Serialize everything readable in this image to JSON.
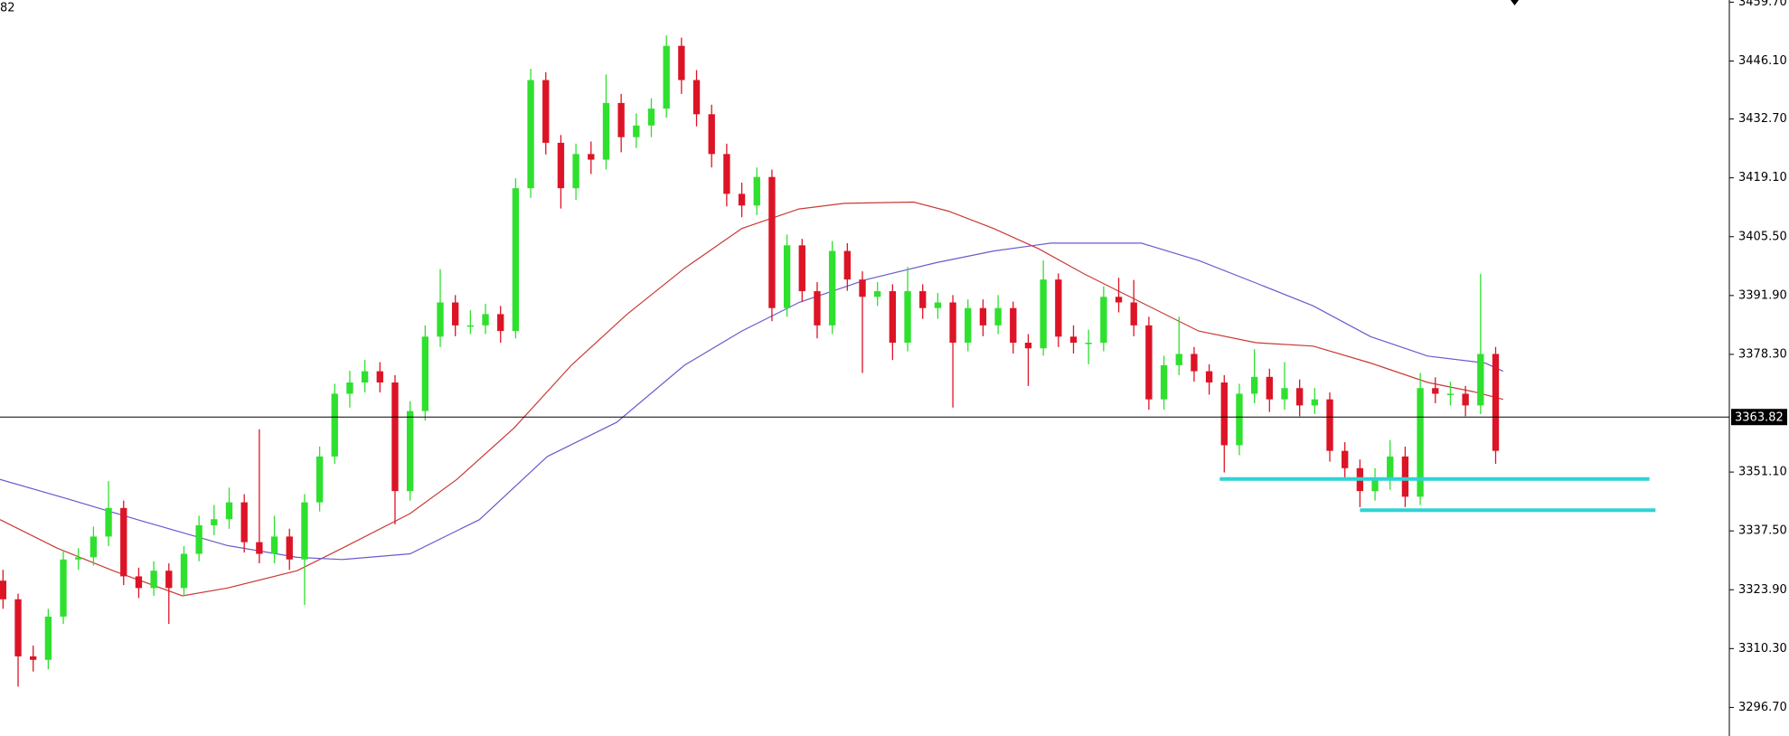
{
  "chart_data": {
    "type": "candlestick",
    "corner_label": "82",
    "up_color": "#2fe02f",
    "down_color": "#dc1426",
    "xlim": [
      -0.2,
      114.5
    ],
    "ylim": [
      3290.1,
      3460.2
    ],
    "yticks": [
      {
        "value": 3459.7,
        "label": "3459.70"
      },
      {
        "value": 3446.1,
        "label": "3446.10"
      },
      {
        "value": 3432.7,
        "label": "3432.70"
      },
      {
        "value": 3419.1,
        "label": "3419.10"
      },
      {
        "value": 3405.5,
        "label": "3405.50"
      },
      {
        "value": 3391.9,
        "label": "3391.90"
      },
      {
        "value": 3378.3,
        "label": "3378.30"
      },
      {
        "value": 3351.1,
        "label": "3351.10"
      },
      {
        "value": 3337.5,
        "label": "3337.50"
      },
      {
        "value": 3323.9,
        "label": "3323.90"
      },
      {
        "value": 3310.3,
        "label": "3310.30"
      },
      {
        "value": 3296.7,
        "label": "3296.70"
      }
    ],
    "current_price": 3363.82,
    "candles": [
      [
        3326.0,
        3328.5,
        3319.5,
        3321.7
      ],
      [
        3321.7,
        3323.0,
        3301.5,
        3308.5
      ],
      [
        3308.5,
        3311.0,
        3305.0,
        3307.7
      ],
      [
        3307.7,
        3319.5,
        3305.5,
        3317.7
      ],
      [
        3317.7,
        3333.0,
        3316.0,
        3330.9
      ],
      [
        3330.9,
        3333.5,
        3328.5,
        3331.4
      ],
      [
        3331.4,
        3338.5,
        3329.5,
        3336.2
      ],
      [
        3336.2,
        3349.0,
        3334.0,
        3342.8
      ],
      [
        3342.8,
        3344.5,
        3325.0,
        3327.0
      ],
      [
        3327.0,
        3329.0,
        3322.0,
        3324.3
      ],
      [
        3324.3,
        3330.5,
        3322.5,
        3328.3
      ],
      [
        3328.3,
        3330.0,
        3316.0,
        3324.3
      ],
      [
        3324.3,
        3334.0,
        3322.5,
        3332.2
      ],
      [
        3332.2,
        3341.0,
        3330.5,
        3338.8
      ],
      [
        3338.8,
        3343.5,
        3336.5,
        3340.2
      ],
      [
        3340.2,
        3347.5,
        3338.0,
        3344.1
      ],
      [
        3344.1,
        3346.0,
        3332.5,
        3334.9
      ],
      [
        3334.9,
        3361.0,
        3330.0,
        3332.2
      ],
      [
        3332.2,
        3341.0,
        3330.0,
        3336.2
      ],
      [
        3336.2,
        3338.0,
        3328.5,
        3330.9
      ],
      [
        3330.9,
        3346.0,
        3320.4,
        3344.1
      ],
      [
        3344.1,
        3357.0,
        3342.0,
        3354.7
      ],
      [
        3354.7,
        3371.5,
        3353.0,
        3369.2
      ],
      [
        3369.2,
        3374.5,
        3366.0,
        3371.8
      ],
      [
        3371.8,
        3377.0,
        3369.5,
        3374.4
      ],
      [
        3374.4,
        3376.5,
        3369.5,
        3371.8
      ],
      [
        3371.8,
        3373.5,
        3339.0,
        3346.7
      ],
      [
        3346.7,
        3367.5,
        3344.5,
        3365.2
      ],
      [
        3365.2,
        3385.0,
        3363.0,
        3382.4
      ],
      [
        3382.4,
        3398.0,
        3380.0,
        3390.3
      ],
      [
        3390.3,
        3392.0,
        3382.5,
        3385.0
      ],
      [
        3385.0,
        3388.5,
        3383.0,
        3385.0
      ],
      [
        3385.0,
        3390.0,
        3383.0,
        3387.6
      ],
      [
        3387.6,
        3389.5,
        3381.0,
        3383.7
      ],
      [
        3383.7,
        3419.0,
        3382.0,
        3416.7
      ],
      [
        3416.7,
        3444.3,
        3414.5,
        3441.7
      ],
      [
        3441.7,
        3443.5,
        3424.5,
        3427.2
      ],
      [
        3427.2,
        3429.0,
        3412.0,
        3416.7
      ],
      [
        3416.7,
        3427.0,
        3414.0,
        3424.6
      ],
      [
        3424.6,
        3427.5,
        3420.0,
        3423.3
      ],
      [
        3423.3,
        3443.0,
        3421.0,
        3436.4
      ],
      [
        3436.4,
        3438.5,
        3425.0,
        3428.5
      ],
      [
        3428.5,
        3434.0,
        3426.0,
        3431.2
      ],
      [
        3431.2,
        3437.5,
        3428.5,
        3435.1
      ],
      [
        3435.1,
        3452.0,
        3433.0,
        3449.6
      ],
      [
        3449.6,
        3451.5,
        3438.5,
        3441.7
      ],
      [
        3441.7,
        3444.0,
        3431.0,
        3433.8
      ],
      [
        3433.8,
        3436.0,
        3421.5,
        3424.6
      ],
      [
        3424.6,
        3427.0,
        3412.5,
        3415.4
      ],
      [
        3415.4,
        3418.0,
        3410.0,
        3412.7
      ],
      [
        3412.7,
        3421.5,
        3410.5,
        3419.3
      ],
      [
        3419.3,
        3421.0,
        3386.0,
        3389.0
      ],
      [
        3389.0,
        3406.0,
        3387.0,
        3403.5
      ],
      [
        3403.5,
        3405.0,
        3390.5,
        3392.9
      ],
      [
        3392.9,
        3395.0,
        3382.0,
        3385.0
      ],
      [
        3385.0,
        3404.5,
        3383.0,
        3402.2
      ],
      [
        3402.2,
        3404.0,
        3393.0,
        3395.6
      ],
      [
        3395.6,
        3397.5,
        3374.0,
        3391.6
      ],
      [
        3391.6,
        3395.0,
        3389.5,
        3392.9
      ],
      [
        3392.9,
        3394.5,
        3377.0,
        3381.0
      ],
      [
        3381.0,
        3398.5,
        3379.0,
        3392.9
      ],
      [
        3392.9,
        3394.5,
        3386.5,
        3389.0
      ],
      [
        3389.0,
        3392.5,
        3386.5,
        3390.3
      ],
      [
        3390.3,
        3392.0,
        3366.0,
        3381.0
      ],
      [
        3381.0,
        3391.0,
        3379.0,
        3389.0
      ],
      [
        3389.0,
        3391.0,
        3382.5,
        3385.0
      ],
      [
        3385.0,
        3392.0,
        3383.0,
        3389.0
      ],
      [
        3389.0,
        3390.5,
        3378.5,
        3381.0
      ],
      [
        3381.0,
        3383.0,
        3371.0,
        3379.7
      ],
      [
        3379.7,
        3400.0,
        3378.0,
        3395.6
      ],
      [
        3395.6,
        3397.0,
        3380.0,
        3382.4
      ],
      [
        3382.4,
        3385.0,
        3378.5,
        3381.0
      ],
      [
        3381.0,
        3384.0,
        3376.0,
        3381.0
      ],
      [
        3381.0,
        3394.0,
        3379.0,
        3391.6
      ],
      [
        3391.6,
        3396.0,
        3388.0,
        3390.3
      ],
      [
        3390.3,
        3395.5,
        3382.5,
        3385.0
      ],
      [
        3385.0,
        3387.0,
        3365.5,
        3367.9
      ],
      [
        3367.9,
        3378.0,
        3365.5,
        3375.8
      ],
      [
        3375.8,
        3387.0,
        3373.5,
        3378.4
      ],
      [
        3378.4,
        3380.0,
        3372.0,
        3374.4
      ],
      [
        3374.4,
        3376.0,
        3369.0,
        3371.8
      ],
      [
        3371.8,
        3373.5,
        3351.0,
        3357.3
      ],
      [
        3357.3,
        3371.5,
        3355.0,
        3369.2
      ],
      [
        3369.2,
        3379.5,
        3367.0,
        3373.1
      ],
      [
        3373.1,
        3375.0,
        3365.0,
        3367.9
      ],
      [
        3367.9,
        3376.5,
        3365.5,
        3370.5
      ],
      [
        3370.5,
        3372.5,
        3364.0,
        3366.5
      ],
      [
        3366.5,
        3370.5,
        3364.5,
        3367.9
      ],
      [
        3367.9,
        3369.5,
        3353.5,
        3356.0
      ],
      [
        3356.0,
        3358.0,
        3349.5,
        3352.0
      ],
      [
        3352.0,
        3354.0,
        3343.0,
        3346.7
      ],
      [
        3346.7,
        3352.0,
        3344.5,
        3349.4
      ],
      [
        3349.4,
        3358.5,
        3347.0,
        3354.7
      ],
      [
        3354.7,
        3357.0,
        3343.0,
        3345.4
      ],
      [
        3345.4,
        3374.0,
        3343.5,
        3370.5
      ],
      [
        3370.5,
        3373.0,
        3367.0,
        3369.2
      ],
      [
        3369.2,
        3372.0,
        3366.5,
        3369.2
      ],
      [
        3369.2,
        3371.0,
        3364.0,
        3366.5
      ],
      [
        3366.5,
        3396.9,
        3364.5,
        3378.4
      ],
      [
        3378.4,
        3380.0,
        3353.0,
        3356.0
      ]
    ],
    "moving_averages": [
      {
        "color": "#c83a34",
        "x": [
          -0.2,
          3.6,
          7.3,
          11.9,
          14.9,
          19.5,
          22.5,
          27.0,
          30.1,
          33.9,
          37.7,
          41.4,
          45.2,
          49.0,
          52.8,
          55.8,
          60.4,
          62.7,
          65.7,
          68.7,
          71.7,
          75.5,
          79.3,
          83.1,
          86.9,
          90.7,
          94.5,
          97.5,
          99.5
        ],
        "values": [
          3340.1,
          3333.5,
          3328.3,
          3322.5,
          3324.3,
          3328.3,
          3333.5,
          3341.5,
          3349.4,
          3361.3,
          3375.8,
          3387.6,
          3398.2,
          3407.4,
          3411.9,
          3413.2,
          3413.5,
          3411.4,
          3407.4,
          3402.7,
          3396.9,
          3390.3,
          3383.7,
          3381.0,
          3380.2,
          3376.3,
          3371.8,
          3369.7,
          3367.9
        ]
      },
      {
        "color": "#6a5acd",
        "x": [
          -0.2,
          4.3,
          8.9,
          14.9,
          19.5,
          22.5,
          27.0,
          31.6,
          36.1,
          40.7,
          45.2,
          49.0,
          52.8,
          57.3,
          61.9,
          65.7,
          69.5,
          75.5,
          79.3,
          83.1,
          86.9,
          90.7,
          94.5,
          98.3,
          99.5
        ],
        "values": [
          3349.4,
          3344.9,
          3340.1,
          3334.1,
          3331.4,
          3330.9,
          3332.2,
          3340.1,
          3354.7,
          3362.6,
          3375.8,
          3383.7,
          3390.3,
          3395.6,
          3399.5,
          3402.2,
          3404.0,
          3404.0,
          3400.0,
          3394.8,
          3389.5,
          3382.4,
          3377.9,
          3376.3,
          3374.4
        ]
      }
    ],
    "levels_color": "#2ed3d6",
    "levels": [
      {
        "value": 3349.5,
        "from": 80.7,
        "to": 109.2
      },
      {
        "value": 3342.3,
        "from": 90.0,
        "to": 109.6
      }
    ]
  }
}
